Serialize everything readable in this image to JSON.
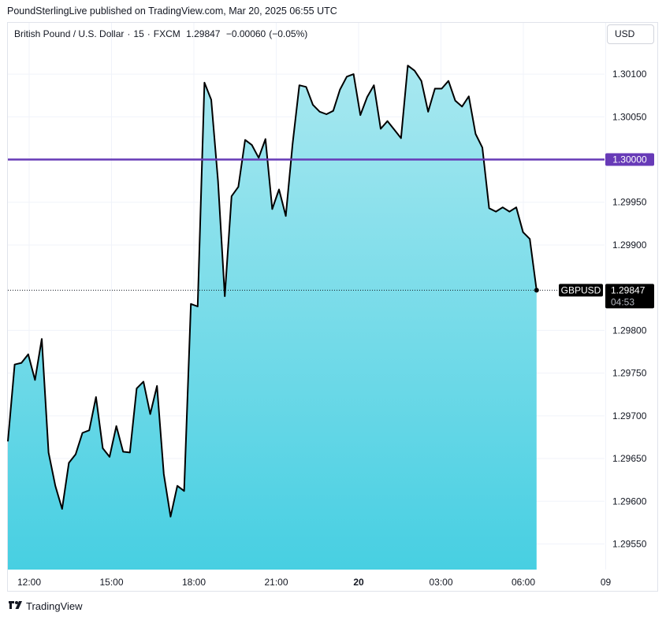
{
  "header": {
    "published": "PoundSterlingLive published on TradingView.com, Mar 20, 2025 06:55 UTC"
  },
  "symbol": {
    "name": "British Pound / U.S. Dollar",
    "interval": "15",
    "exchange": "FXCM",
    "price": "1.29847",
    "change": "−0.00060",
    "change_pct": "(−0.05%)"
  },
  "currency": "USD",
  "brand": "TradingView",
  "colors": {
    "line": "#000000",
    "area_top": "#a8e8f0",
    "area_bottom": "#47cfe2",
    "level_line": "#673ab7",
    "grid": "#f0f3fa"
  },
  "chart_data": {
    "type": "area",
    "x_tick_labels": [
      "12:00",
      "15:00",
      "18:00",
      "21:00",
      "20",
      "03:00",
      "06:00",
      "09"
    ],
    "y_tick_labels": [
      "1.30100",
      "1.30050",
      "1.29950",
      "1.29900",
      "1.29800",
      "1.29750",
      "1.29700",
      "1.29650",
      "1.29600",
      "1.29550"
    ],
    "ylim": [
      1.2952,
      1.3016
    ],
    "grid": true,
    "series": [
      {
        "values": [
          1.2967,
          1.2976,
          1.29762,
          1.29772,
          1.29742,
          1.2979,
          1.29657,
          1.29618,
          1.29591,
          1.29645,
          1.29655,
          1.2968,
          1.29683,
          1.29722,
          1.29662,
          1.29652,
          1.29688,
          1.29658,
          1.29657,
          1.29732,
          1.2974,
          1.29702,
          1.29735,
          1.29632,
          1.29582,
          1.29618,
          1.29612,
          1.29831,
          1.29828,
          1.3009,
          1.3007,
          1.29975,
          1.2984,
          1.29957,
          1.29968,
          1.30023,
          1.30017,
          1.30002,
          1.30024,
          1.29942,
          1.29965,
          1.29934,
          1.30018,
          1.30087,
          1.30085,
          1.30064,
          1.30056,
          1.30053,
          1.30057,
          1.30082,
          1.30097,
          1.301,
          1.30052,
          1.30073,
          1.30087,
          1.30036,
          1.30045,
          1.30035,
          1.30025,
          1.3011,
          1.30104,
          1.30092,
          1.30056,
          1.30083,
          1.30083,
          1.30092,
          1.30069,
          1.30062,
          1.30074,
          1.3003,
          1.30014,
          1.29943,
          1.29939,
          1.29944,
          1.29939,
          1.29944,
          1.29915,
          1.29907,
          1.29847
        ]
      }
    ],
    "annotations": {
      "horizontal_level": "1.30000",
      "last_symbol": "GBPUSD",
      "last_price": "1.29847",
      "countdown": "04:53"
    }
  }
}
